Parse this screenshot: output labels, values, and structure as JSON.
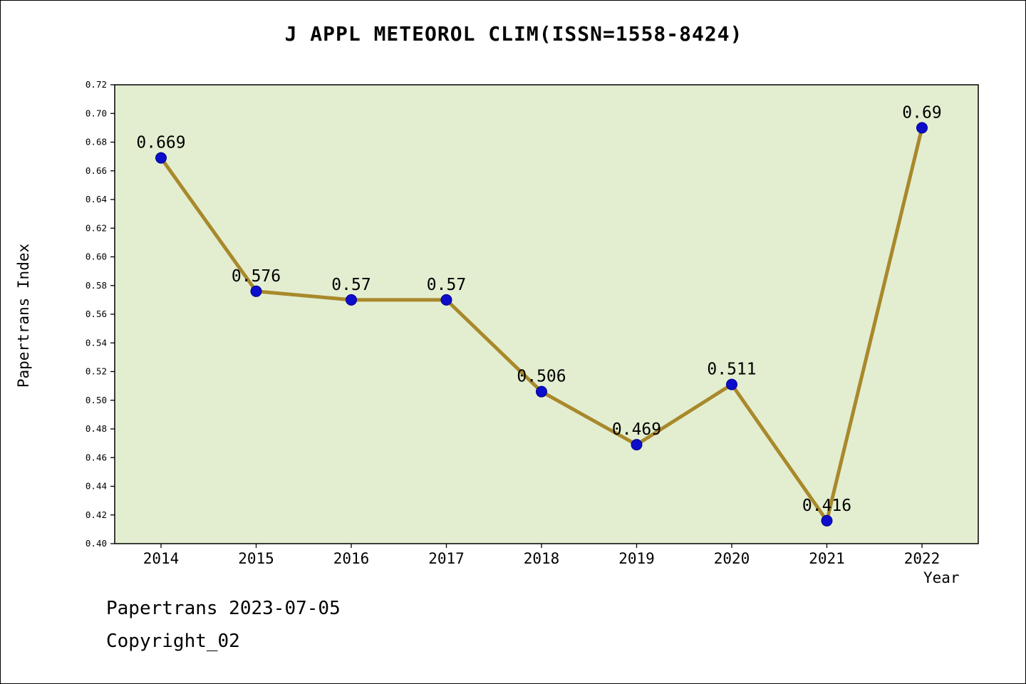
{
  "title": "J APPL METEOROL CLIM(ISSN=1558-8424)",
  "footer": {
    "line1": "Papertrans 2023-07-05",
    "line2": "Copyright_02"
  },
  "chart_data": {
    "type": "line",
    "title": "J APPL METEOROL CLIM(ISSN=1558-8424)",
    "xlabel": "Year",
    "ylabel": "Papertrans Index",
    "x": [
      2014,
      2015,
      2016,
      2017,
      2018,
      2019,
      2020,
      2021,
      2022
    ],
    "xtick_labels": [
      "2014",
      "2015",
      "2016",
      "2017",
      "2018",
      "2019",
      "2020",
      "2021",
      "2022"
    ],
    "series": [
      {
        "name": "Papertrans Index",
        "values": [
          0.669,
          0.576,
          0.57,
          0.57,
          0.506,
          0.469,
          0.511,
          0.416,
          0.69
        ]
      }
    ],
    "point_labels": [
      "0.669",
      "0.576",
      "0.57",
      "0.57",
      "0.506",
      "0.469",
      "0.511",
      "0.416",
      "0.69"
    ],
    "ylim": [
      0.4,
      0.72
    ],
    "ytick_step": 0.02,
    "ytick_labels": [
      "0.40",
      "0.42",
      "0.44",
      "0.46",
      "0.48",
      "0.50",
      "0.52",
      "0.54",
      "0.56",
      "0.58",
      "0.60",
      "0.62",
      "0.64",
      "0.66",
      "0.68",
      "0.70",
      "0.72"
    ],
    "grid": false,
    "legend_position": "none",
    "colors": {
      "line": "#a8892b",
      "marker_fill": "#0d0dcc",
      "marker_edge": "#00008b",
      "plot_background": "#e3eed1",
      "axis": "#000000"
    }
  }
}
